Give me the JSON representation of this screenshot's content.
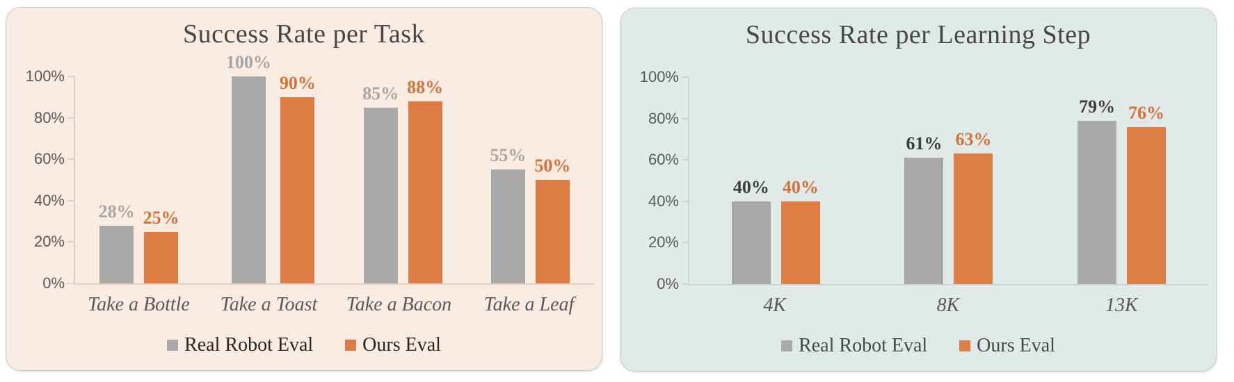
{
  "page": {
    "background": "#ffffff",
    "title_color": "#474747",
    "tick_label_color": "#595959",
    "category_color": "#595959"
  },
  "chart_data": [
    {
      "type": "bar",
      "title": "Success Rate per Task",
      "categories": [
        "Take a Bottle",
        "Take a Toast",
        "Take a Bacon",
        "Take a Leaf"
      ],
      "series": [
        {
          "name": "Real Robot Eval",
          "values": [
            28,
            100,
            85,
            55
          ],
          "color": "#a9a9a9",
          "label_color": "#a6a6a6"
        },
        {
          "name": "Ours Eval",
          "values": [
            25,
            90,
            88,
            50
          ],
          "color": "#dc7b43",
          "label_color": "#d7713a"
        }
      ],
      "ylim": [
        0,
        100
      ],
      "yticks": [
        0,
        20,
        40,
        60,
        80,
        100
      ],
      "ytick_suffix": "%",
      "grid": false,
      "legend_position": "bottom",
      "panel_bg": "#faece1",
      "axis_color": "#dcd2c8",
      "legend_text_color": "#262626"
    },
    {
      "type": "bar",
      "title": "Success Rate per Learning Step",
      "categories": [
        "4K",
        "8K",
        "13K"
      ],
      "series": [
        {
          "name": "Real Robot Eval",
          "values": [
            40,
            61,
            79
          ],
          "color": "#a9a9a9",
          "label_color": "#3d3d3d"
        },
        {
          "name": "Ours Eval",
          "values": [
            40,
            63,
            76
          ],
          "color": "#df7f45",
          "label_color": "#d7713a"
        }
      ],
      "ylim": [
        0,
        100
      ],
      "yticks": [
        0,
        20,
        40,
        60,
        80,
        100
      ],
      "ytick_suffix": "%",
      "grid": false,
      "legend_position": "bottom",
      "panel_bg": "#e0eae8",
      "axis_color": "#cbd6d4",
      "legend_text_color": "#474747"
    }
  ]
}
